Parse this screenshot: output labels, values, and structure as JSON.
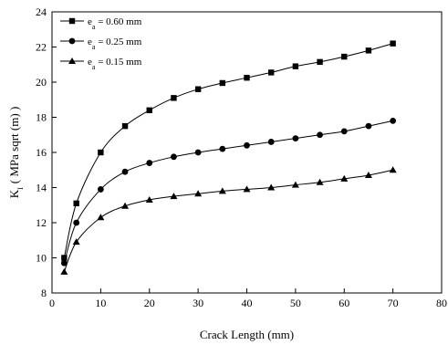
{
  "chart_data": {
    "type": "line",
    "xlabel": "Crack Length (mm)",
    "ylabel_main": "K",
    "ylabel_sub": "I",
    "ylabel_rest": "( MPa sqrt (m) )",
    "xlim": [
      0,
      80
    ],
    "ylim": [
      8,
      24
    ],
    "xticks": [
      0,
      10,
      20,
      30,
      40,
      50,
      60,
      70,
      80
    ],
    "yticks": [
      8,
      10,
      12,
      14,
      16,
      18,
      20,
      22,
      24
    ],
    "grid": false,
    "legend_position": "top-left",
    "x": [
      2.5,
      5,
      10,
      15,
      20,
      25,
      30,
      35,
      40,
      45,
      50,
      55,
      60,
      65,
      70
    ],
    "series": [
      {
        "legend_prefix": "e",
        "legend_sub": "a",
        "legend_suffix": " = 0.60 mm",
        "marker": "square",
        "values": [
          10.0,
          13.1,
          16.0,
          17.5,
          18.4,
          19.1,
          19.6,
          19.95,
          20.25,
          20.55,
          20.9,
          21.15,
          21.45,
          21.8,
          22.2
        ]
      },
      {
        "legend_prefix": "e",
        "legend_sub": "a",
        "legend_suffix": " = 0.25 mm",
        "marker": "circle",
        "values": [
          9.7,
          12.0,
          13.9,
          14.9,
          15.4,
          15.75,
          16.0,
          16.2,
          16.4,
          16.6,
          16.8,
          17.0,
          17.2,
          17.5,
          17.8
        ]
      },
      {
        "legend_prefix": "e",
        "legend_sub": "a",
        "legend_suffix": " = 0.15 mm",
        "marker": "triangle",
        "values": [
          9.2,
          10.9,
          12.3,
          12.95,
          13.3,
          13.5,
          13.65,
          13.8,
          13.9,
          14.0,
          14.15,
          14.3,
          14.5,
          14.7,
          15.0
        ]
      }
    ]
  }
}
